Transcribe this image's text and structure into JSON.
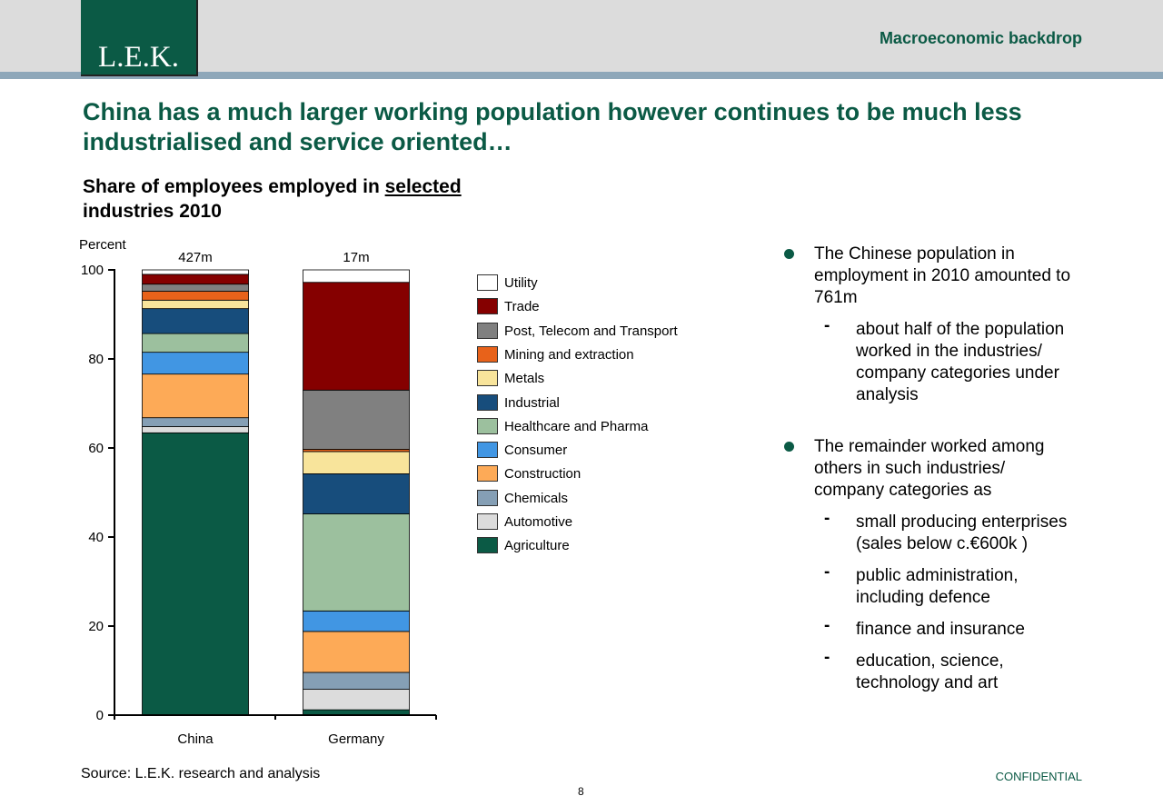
{
  "header": {
    "logo_text": "L.E.K.",
    "section_title": "Macroeconomic backdrop"
  },
  "headline": {
    "line1": "China has a much larger working population however continues to be much less",
    "line2": "industrialised and service oriented…"
  },
  "subtitle": {
    "part1": "Share of employees employed in ",
    "underlined": "selected",
    "part2": "industries 2010"
  },
  "chart_data": {
    "type": "bar",
    "stacked": true,
    "ylabel": "Percent",
    "ylim": [
      0,
      100
    ],
    "yticks": [
      "0",
      "20",
      "40",
      "60",
      "80",
      "100"
    ],
    "categories": [
      "China",
      "Germany"
    ],
    "totals": [
      "427m",
      "17m"
    ],
    "series": [
      {
        "name": "Agriculture",
        "color": "#0b5a45",
        "values": [
          63.4,
          1.2
        ]
      },
      {
        "name": "Automotive",
        "color": "#dcdcdc",
        "values": [
          1.4,
          4.6
        ]
      },
      {
        "name": "Chemicals",
        "color": "#859fb5",
        "values": [
          2.0,
          3.8
        ]
      },
      {
        "name": "Construction",
        "color": "#fdaa57",
        "values": [
          9.8,
          9.2
        ]
      },
      {
        "name": "Consumer",
        "color": "#4196e3",
        "values": [
          4.9,
          4.6
        ]
      },
      {
        "name": "Healthcare and Pharma",
        "color": "#9cc09e",
        "values": [
          4.2,
          21.8
        ]
      },
      {
        "name": "Industrial",
        "color": "#174d7c",
        "values": [
          5.6,
          9.0
        ]
      },
      {
        "name": "Metals",
        "color": "#f8e49b",
        "values": [
          1.9,
          5.0
        ]
      },
      {
        "name": "Mining and extraction",
        "color": "#e8621a",
        "values": [
          2.0,
          0.5
        ]
      },
      {
        "name": "Post, Telecom and Transport",
        "color": "#808080",
        "values": [
          1.6,
          13.3
        ]
      },
      {
        "name": "Trade",
        "color": "#850000",
        "values": [
          2.2,
          24.2
        ]
      },
      {
        "name": "Utility",
        "color": "#ffffff",
        "values": [
          1.0,
          2.8
        ]
      }
    ]
  },
  "legend_order": [
    "Utility",
    "Trade",
    "Post, Telecom and Transport",
    "Mining and extraction",
    "Metals",
    "Industrial",
    "Healthcare and Pharma",
    "Consumer",
    "Construction",
    "Chemicals",
    "Automotive",
    "Agriculture"
  ],
  "bullets": [
    {
      "lines": [
        "The Chinese population in",
        "employment in 2010 amounted to",
        "761m"
      ],
      "subs": [
        {
          "lines": [
            "about half of the population",
            "worked in the industries/",
            "company categories under",
            "analysis"
          ]
        }
      ]
    },
    {
      "lines": [
        "The remainder worked among",
        "others in such industries/",
        "company categories as"
      ],
      "subs": [
        {
          "lines": [
            "small producing enterprises",
            "(sales below c.€600k )"
          ]
        },
        {
          "lines": [
            "public administration,",
            "including defence"
          ]
        },
        {
          "lines": [
            "finance and insurance"
          ]
        },
        {
          "lines": [
            "education, science,",
            "technology and art"
          ]
        }
      ]
    }
  ],
  "footer": {
    "source": "Source: L.E.K. research and analysis",
    "page": "8",
    "confidential": "CONFIDENTIAL"
  }
}
